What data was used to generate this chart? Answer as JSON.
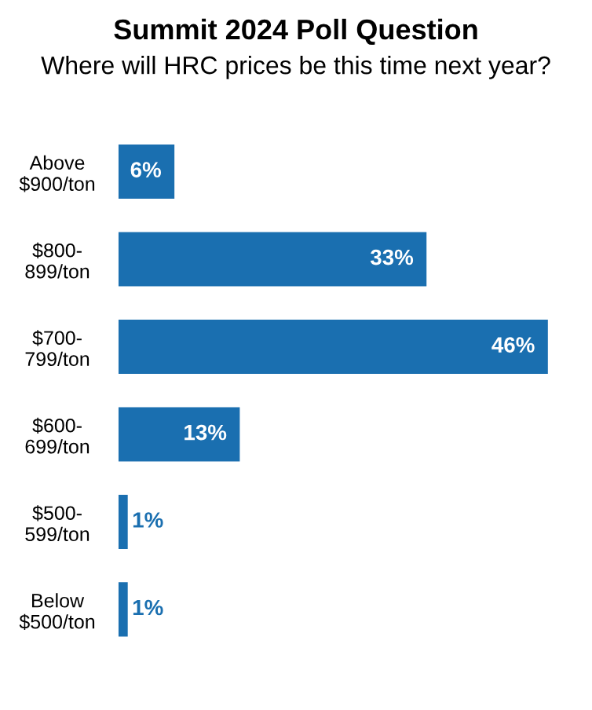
{
  "chart_data": {
    "type": "bar",
    "orientation": "horizontal",
    "title": "Summit 2024 Poll Question",
    "subtitle": "Where will HRC prices be this time next year?",
    "categories": [
      "Above\n$900/ton",
      "$800-\n899/ton",
      "$700-\n799/ton",
      "$600-\n699/ton",
      "$500-\n599/ton",
      "Below\n$500/ton"
    ],
    "values": [
      6,
      33,
      46,
      13,
      1,
      1
    ],
    "color": "#1a6fb0",
    "data_labels": true,
    "value_labels": [
      "6%",
      "33%",
      "46%",
      "13%",
      "1%",
      "1%"
    ],
    "grid": false,
    "legend": false
  }
}
